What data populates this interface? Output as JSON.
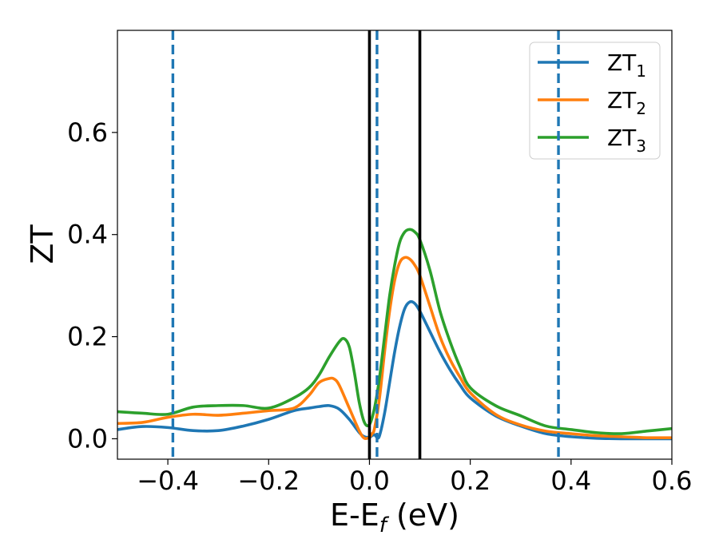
{
  "chart_data": {
    "type": "line",
    "title": "",
    "xlabel": "E-E",
    "xlabel_subscript": "f",
    "xlabel_unit": " (eV)",
    "ylabel": "ZT",
    "xlim": [
      -0.5,
      0.6
    ],
    "ylim": [
      -0.04,
      0.8
    ],
    "grid": false,
    "legend_position": "top-right",
    "x_ticks": [
      -0.4,
      -0.2,
      0.0,
      0.2,
      0.4,
      0.6
    ],
    "x_tick_labels": [
      "−0.4",
      "−0.2",
      "0.0",
      "0.2",
      "0.4",
      "0.6"
    ],
    "y_ticks": [
      0.0,
      0.2,
      0.4,
      0.6
    ],
    "y_tick_labels": [
      "0.0",
      "0.2",
      "0.4",
      "0.6"
    ],
    "vlines": [
      {
        "x": -0.39,
        "style": "dashed",
        "color": "#1f77b4"
      },
      {
        "x": 0.015,
        "style": "dashed",
        "color": "#1f77b4"
      },
      {
        "x": 0.375,
        "style": "dashed",
        "color": "#1f77b4"
      },
      {
        "x": 0.0,
        "style": "solid",
        "color": "#000000"
      },
      {
        "x": 0.1,
        "style": "solid",
        "color": "#000000"
      }
    ],
    "series": [
      {
        "name": "ZT",
        "subscript": "1",
        "color": "#1f77b4",
        "x": [
          -0.5,
          -0.45,
          -0.4,
          -0.35,
          -0.3,
          -0.25,
          -0.2,
          -0.15,
          -0.12,
          -0.1,
          -0.08,
          -0.06,
          -0.04,
          -0.02,
          -0.01,
          0.0,
          0.005,
          0.01,
          0.015,
          0.02,
          0.03,
          0.04,
          0.05,
          0.06,
          0.07,
          0.08,
          0.09,
          0.1,
          0.12,
          0.14,
          0.16,
          0.18,
          0.2,
          0.25,
          0.3,
          0.35,
          0.4,
          0.45,
          0.5,
          0.55,
          0.6
        ],
        "y": [
          0.018,
          0.024,
          0.022,
          0.016,
          0.016,
          0.025,
          0.038,
          0.055,
          0.06,
          0.063,
          0.065,
          0.058,
          0.038,
          0.012,
          0.004,
          0.003,
          0.006,
          0.008,
          0.003,
          0.006,
          0.05,
          0.11,
          0.17,
          0.22,
          0.255,
          0.268,
          0.265,
          0.25,
          0.21,
          0.17,
          0.135,
          0.105,
          0.08,
          0.045,
          0.025,
          0.01,
          0.004,
          0.001,
          0.0,
          0.0,
          0.0
        ]
      },
      {
        "name": "ZT",
        "subscript": "2",
        "color": "#ff7f0e",
        "x": [
          -0.5,
          -0.45,
          -0.4,
          -0.35,
          -0.3,
          -0.25,
          -0.2,
          -0.15,
          -0.12,
          -0.1,
          -0.08,
          -0.07,
          -0.06,
          -0.04,
          -0.02,
          -0.01,
          0.0,
          0.005,
          0.01,
          0.02,
          0.03,
          0.04,
          0.05,
          0.06,
          0.07,
          0.08,
          0.09,
          0.1,
          0.12,
          0.14,
          0.16,
          0.18,
          0.2,
          0.25,
          0.3,
          0.35,
          0.4,
          0.45,
          0.5,
          0.55,
          0.6
        ],
        "y": [
          0.03,
          0.032,
          0.042,
          0.048,
          0.046,
          0.05,
          0.055,
          0.06,
          0.085,
          0.11,
          0.118,
          0.117,
          0.105,
          0.06,
          0.015,
          0.001,
          0.003,
          0.01,
          0.02,
          0.08,
          0.17,
          0.25,
          0.31,
          0.345,
          0.355,
          0.352,
          0.34,
          0.32,
          0.26,
          0.2,
          0.155,
          0.12,
          0.09,
          0.048,
          0.027,
          0.015,
          0.01,
          0.006,
          0.004,
          0.002,
          0.002
        ]
      },
      {
        "name": "ZT",
        "subscript": "3",
        "color": "#2ca02c",
        "x": [
          -0.5,
          -0.45,
          -0.4,
          -0.35,
          -0.3,
          -0.25,
          -0.2,
          -0.15,
          -0.12,
          -0.1,
          -0.08,
          -0.06,
          -0.05,
          -0.04,
          -0.03,
          -0.02,
          -0.01,
          0.0,
          0.01,
          0.02,
          0.03,
          0.04,
          0.05,
          0.06,
          0.07,
          0.08,
          0.09,
          0.1,
          0.12,
          0.14,
          0.16,
          0.18,
          0.2,
          0.25,
          0.3,
          0.35,
          0.4,
          0.45,
          0.5,
          0.55,
          0.6
        ],
        "y": [
          0.053,
          0.05,
          0.048,
          0.062,
          0.065,
          0.065,
          0.06,
          0.08,
          0.1,
          0.125,
          0.16,
          0.19,
          0.196,
          0.18,
          0.13,
          0.07,
          0.032,
          0.028,
          0.06,
          0.12,
          0.2,
          0.28,
          0.34,
          0.385,
          0.405,
          0.41,
          0.405,
          0.39,
          0.33,
          0.25,
          0.19,
          0.14,
          0.1,
          0.065,
          0.045,
          0.025,
          0.018,
          0.012,
          0.01,
          0.015,
          0.02
        ]
      }
    ]
  }
}
